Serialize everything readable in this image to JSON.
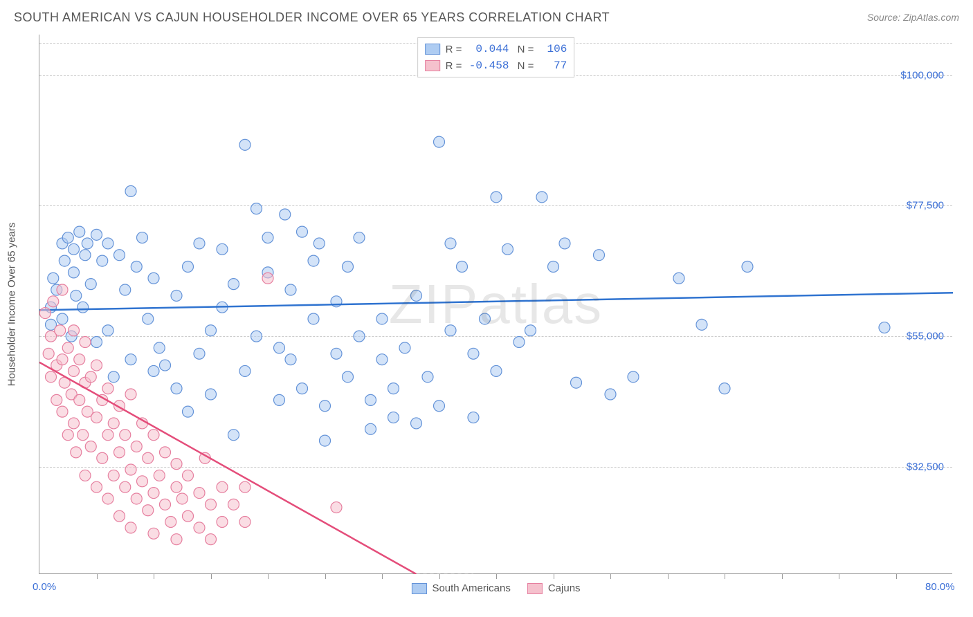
{
  "title": "SOUTH AMERICAN VS CAJUN HOUSEHOLDER INCOME OVER 65 YEARS CORRELATION CHART",
  "source": "Source: ZipAtlas.com",
  "watermark": "ZIPatlas",
  "y_axis_title": "Householder Income Over 65 years",
  "chart": {
    "type": "scatter",
    "background_color": "#ffffff",
    "grid_color": "#cccccc",
    "axis_color": "#999999",
    "xlim": [
      0,
      80
    ],
    "ylim": [
      14000,
      107000
    ],
    "x_ticks_minor": [
      5,
      10,
      15,
      20,
      25,
      30,
      35,
      40,
      45,
      50,
      55,
      60,
      65,
      70,
      75
    ],
    "x_tick_labels": [
      {
        "x": 0,
        "label": "0.0%"
      },
      {
        "x": 80,
        "label": "80.0%"
      }
    ],
    "y_grid": [
      32500,
      55000,
      77500,
      100000
    ],
    "y_tick_labels": [
      {
        "y": 32500,
        "label": "$32,500"
      },
      {
        "y": 55000,
        "label": "$55,000"
      },
      {
        "y": 77500,
        "label": "$77,500"
      },
      {
        "y": 100000,
        "label": "$100,000"
      }
    ],
    "marker_radius": 8,
    "marker_stroke_width": 1.2,
    "marker_fill_opacity": 0.25,
    "trendline_width": 2.5,
    "series": [
      {
        "name": "South Americans",
        "color_fill": "#aeccf2",
        "color_stroke": "#6493d8",
        "color_trend": "#2f73d0",
        "R": "0.044",
        "N": "106",
        "trendline": {
          "x1": 0,
          "y1": 59500,
          "x2": 80,
          "y2": 62500
        },
        "points": [
          [
            1,
            60000
          ],
          [
            1,
            57000
          ],
          [
            1.2,
            65000
          ],
          [
            1.5,
            63000
          ],
          [
            2,
            71000
          ],
          [
            2,
            58000
          ],
          [
            2.2,
            68000
          ],
          [
            2.5,
            72000
          ],
          [
            2.8,
            55000
          ],
          [
            3,
            70000
          ],
          [
            3,
            66000
          ],
          [
            3.2,
            62000
          ],
          [
            3.5,
            73000
          ],
          [
            3.8,
            60000
          ],
          [
            4,
            69000
          ],
          [
            4.2,
            71000
          ],
          [
            4.5,
            64000
          ],
          [
            5,
            72500
          ],
          [
            5,
            54000
          ],
          [
            5.5,
            68000
          ],
          [
            6,
            71000
          ],
          [
            6,
            56000
          ],
          [
            6.5,
            48000
          ],
          [
            7,
            69000
          ],
          [
            7.5,
            63000
          ],
          [
            8,
            80000
          ],
          [
            8,
            51000
          ],
          [
            8.5,
            67000
          ],
          [
            9,
            72000
          ],
          [
            9.5,
            58000
          ],
          [
            10,
            65000
          ],
          [
            10,
            49000
          ],
          [
            10.5,
            53000
          ],
          [
            11,
            50000
          ],
          [
            12,
            62000
          ],
          [
            12,
            46000
          ],
          [
            13,
            67000
          ],
          [
            13,
            42000
          ],
          [
            14,
            71000
          ],
          [
            14,
            52000
          ],
          [
            15,
            56000
          ],
          [
            15,
            45000
          ],
          [
            16,
            70000
          ],
          [
            16,
            60000
          ],
          [
            17,
            64000
          ],
          [
            17,
            38000
          ],
          [
            18,
            88000
          ],
          [
            18,
            49000
          ],
          [
            19,
            55000
          ],
          [
            19,
            77000
          ],
          [
            20,
            66000
          ],
          [
            20,
            72000
          ],
          [
            21,
            53000
          ],
          [
            21,
            44000
          ],
          [
            21.5,
            76000
          ],
          [
            22,
            63000
          ],
          [
            22,
            51000
          ],
          [
            23,
            73000
          ],
          [
            23,
            46000
          ],
          [
            24,
            68000
          ],
          [
            24,
            58000
          ],
          [
            24.5,
            71000
          ],
          [
            25,
            43000
          ],
          [
            25,
            37000
          ],
          [
            26,
            61000
          ],
          [
            26,
            52000
          ],
          [
            27,
            67000
          ],
          [
            27,
            48000
          ],
          [
            28,
            55000
          ],
          [
            28,
            72000
          ],
          [
            29,
            44000
          ],
          [
            29,
            39000
          ],
          [
            30,
            51000
          ],
          [
            30,
            58000
          ],
          [
            31,
            41000
          ],
          [
            31,
            46000
          ],
          [
            32,
            53000
          ],
          [
            33,
            62000
          ],
          [
            33,
            40000
          ],
          [
            34,
            48000
          ],
          [
            35,
            88500
          ],
          [
            35,
            43000
          ],
          [
            36,
            56000
          ],
          [
            36,
            71000
          ],
          [
            37,
            67000
          ],
          [
            38,
            52000
          ],
          [
            38,
            41000
          ],
          [
            39,
            58000
          ],
          [
            40,
            79000
          ],
          [
            40,
            49000
          ],
          [
            41,
            70000
          ],
          [
            42,
            54000
          ],
          [
            43,
            56000
          ],
          [
            44,
            79000
          ],
          [
            45,
            67000
          ],
          [
            46,
            71000
          ],
          [
            47,
            47000
          ],
          [
            49,
            69000
          ],
          [
            50,
            45000
          ],
          [
            52,
            48000
          ],
          [
            56,
            65000
          ],
          [
            58,
            57000
          ],
          [
            60,
            46000
          ],
          [
            62,
            67000
          ],
          [
            74,
            56500
          ]
        ]
      },
      {
        "name": "Cajuns",
        "color_fill": "#f5c1cd",
        "color_stroke": "#e67f9f",
        "color_trend": "#e44d7a",
        "R": "-0.458",
        "N": "77",
        "trendline": {
          "x1": 0,
          "y1": 50500,
          "x2": 33,
          "y2": 14000
        },
        "trendline_dashed": {
          "x1": 33,
          "y1": 14000,
          "x2": 38,
          "y2": 8500
        },
        "points": [
          [
            0.5,
            59000
          ],
          [
            0.8,
            52000
          ],
          [
            1,
            55000
          ],
          [
            1,
            48000
          ],
          [
            1.2,
            61000
          ],
          [
            1.5,
            50000
          ],
          [
            1.5,
            44000
          ],
          [
            1.8,
            56000
          ],
          [
            2,
            51000
          ],
          [
            2,
            42000
          ],
          [
            2,
            63000
          ],
          [
            2.2,
            47000
          ],
          [
            2.5,
            53000
          ],
          [
            2.5,
            38000
          ],
          [
            2.8,
            45000
          ],
          [
            3,
            49000
          ],
          [
            3,
            40000
          ],
          [
            3,
            56000
          ],
          [
            3.2,
            35000
          ],
          [
            3.5,
            44000
          ],
          [
            3.5,
            51000
          ],
          [
            3.8,
            38000
          ],
          [
            4,
            47000
          ],
          [
            4,
            31000
          ],
          [
            4,
            54000
          ],
          [
            4.2,
            42000
          ],
          [
            4.5,
            36000
          ],
          [
            4.5,
            48000
          ],
          [
            5,
            29000
          ],
          [
            5,
            41000
          ],
          [
            5,
            50000
          ],
          [
            5.5,
            34000
          ],
          [
            5.5,
            44000
          ],
          [
            6,
            38000
          ],
          [
            6,
            27000
          ],
          [
            6,
            46000
          ],
          [
            6.5,
            31000
          ],
          [
            6.5,
            40000
          ],
          [
            7,
            35000
          ],
          [
            7,
            24000
          ],
          [
            7,
            43000
          ],
          [
            7.5,
            29000
          ],
          [
            7.5,
            38000
          ],
          [
            8,
            32000
          ],
          [
            8,
            22000
          ],
          [
            8,
            45000
          ],
          [
            8.5,
            27000
          ],
          [
            8.5,
            36000
          ],
          [
            9,
            30000
          ],
          [
            9,
            40000
          ],
          [
            9.5,
            25000
          ],
          [
            9.5,
            34000
          ],
          [
            10,
            28000
          ],
          [
            10,
            21000
          ],
          [
            10,
            38000
          ],
          [
            10.5,
            31000
          ],
          [
            11,
            26000
          ],
          [
            11,
            35000
          ],
          [
            11.5,
            23000
          ],
          [
            12,
            29000
          ],
          [
            12,
            20000
          ],
          [
            12,
            33000
          ],
          [
            12.5,
            27000
          ],
          [
            13,
            24000
          ],
          [
            13,
            31000
          ],
          [
            14,
            28000
          ],
          [
            14,
            22000
          ],
          [
            14.5,
            34000
          ],
          [
            15,
            26000
          ],
          [
            15,
            20000
          ],
          [
            16,
            29000
          ],
          [
            16,
            23000
          ],
          [
            17,
            26000
          ],
          [
            18,
            29000
          ],
          [
            18,
            23000
          ],
          [
            20,
            65000
          ],
          [
            26,
            25500
          ]
        ]
      }
    ]
  },
  "legend_bottom": [
    {
      "label": "South Americans",
      "fill": "#aeccf2",
      "stroke": "#6493d8"
    },
    {
      "label": "Cajuns",
      "fill": "#f5c1cd",
      "stroke": "#e67f9f"
    }
  ],
  "colors": {
    "title_text": "#555555",
    "source_text": "#888888",
    "tick_label": "#3b6fd6"
  }
}
